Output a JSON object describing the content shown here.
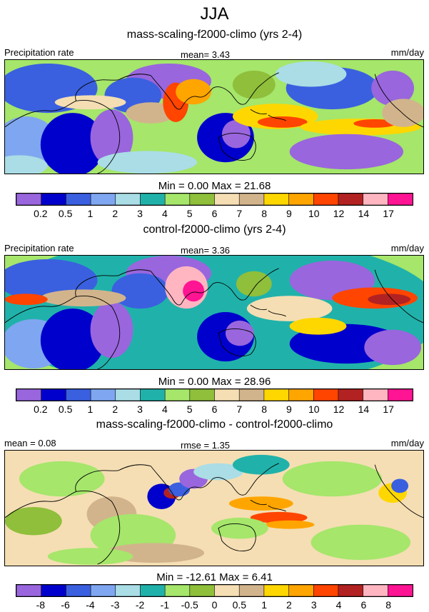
{
  "figure": {
    "season": "JJA"
  },
  "panels": [
    {
      "title": "mass-scaling-f2000-climo (yrs 2-4)",
      "left_label": "Precipitation rate",
      "center_label": "mean=   3.43",
      "right_label": "mm/day",
      "stats": "Min =   0.00 Max =  21.68"
    },
    {
      "title": "control-f2000-climo (yrs 2-4)",
      "left_label": "Precipitation rate",
      "center_label": "mean=   3.36",
      "right_label": "mm/day",
      "stats": "Min =   0.00 Max =  28.96"
    },
    {
      "title": "mass-scaling-f2000-climo - control-f2000-climo",
      "left_label": "mean =   0.08",
      "center_label": "rmse =   1.35",
      "right_label": "mm/day",
      "stats": "Min = -12.61 Max =   6.41"
    }
  ],
  "chart_data": [
    {
      "type": "heatmap",
      "title": "mass-scaling-f2000-climo (yrs 2-4)",
      "variable": "Precipitation rate",
      "units": "mm/day",
      "mean": 3.43,
      "min": 0.0,
      "max": 21.68,
      "colorbar": {
        "levels": [
          "0.2",
          "0.5",
          "1",
          "2",
          "3",
          "4",
          "5",
          "6",
          "7",
          "8",
          "9",
          "10",
          "12",
          "14",
          "17"
        ],
        "colors": [
          "#9966dd",
          "#0000cc",
          "#3a60e0",
          "#7fa6f0",
          "#aadde6",
          "#20b2aa",
          "#a5e66b",
          "#8fbf3b",
          "#f5deb3",
          "#d2b48c",
          "#ffd700",
          "#ffa500",
          "#ff4500",
          "#b22222",
          "#ffb6c1",
          "#ff1493"
        ]
      }
    },
    {
      "type": "heatmap",
      "title": "control-f2000-climo (yrs 2-4)",
      "variable": "Precipitation rate",
      "units": "mm/day",
      "mean": 3.36,
      "min": 0.0,
      "max": 28.96,
      "colorbar": {
        "levels": [
          "0.2",
          "0.5",
          "1",
          "2",
          "3",
          "4",
          "5",
          "6",
          "7",
          "8",
          "9",
          "10",
          "12",
          "14",
          "17"
        ],
        "colors": [
          "#9966dd",
          "#0000cc",
          "#3a60e0",
          "#7fa6f0",
          "#aadde6",
          "#20b2aa",
          "#a5e66b",
          "#8fbf3b",
          "#f5deb3",
          "#d2b48c",
          "#ffd700",
          "#ffa500",
          "#ff4500",
          "#b22222",
          "#ffb6c1",
          "#ff1493"
        ]
      }
    },
    {
      "type": "heatmap",
      "title": "mass-scaling-f2000-climo - control-f2000-climo",
      "units": "mm/day",
      "mean": 0.08,
      "rmse": 1.35,
      "min": -12.61,
      "max": 6.41,
      "colorbar": {
        "levels": [
          "-8",
          "-6",
          "-4",
          "-3",
          "-2",
          "-1",
          "-0.5",
          "0",
          "0.5",
          "1",
          "2",
          "3",
          "4",
          "6",
          "8"
        ],
        "colors": [
          "#9966dd",
          "#0000cc",
          "#3a60e0",
          "#7fa6f0",
          "#aadde6",
          "#20b2aa",
          "#a5e66b",
          "#8fbf3b",
          "#f5deb3",
          "#d2b48c",
          "#ffd700",
          "#ffa500",
          "#ff4500",
          "#b22222",
          "#ffb6c1",
          "#ff1493"
        ]
      }
    }
  ]
}
